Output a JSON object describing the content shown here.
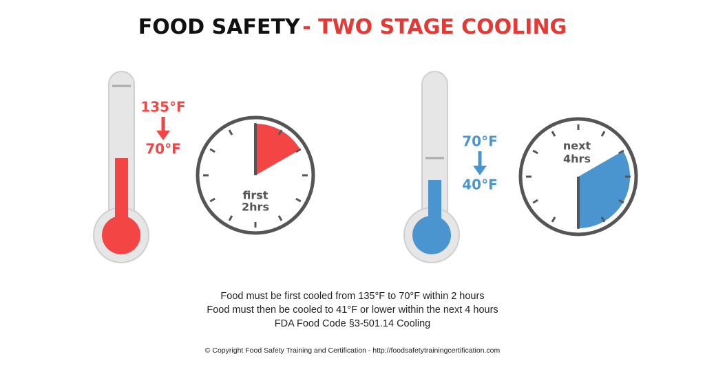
{
  "header": {
    "title_main": "FOOD SAFETY",
    "title_accent": "- TWO STAGE COOLING"
  },
  "stages": [
    {
      "from_temp": "135°F",
      "to_temp": "70°F",
      "clock_label": [
        "first",
        "2hrs"
      ]
    },
    {
      "from_temp": "70°F",
      "to_temp": "40°F",
      "clock_label": [
        "next",
        "4hrs"
      ]
    }
  ],
  "notes": [
    "Food must be first cooled from 135°F to 70°F within 2 hours",
    "Food must then be cooled to 41°F or lower within the next 4 hours",
    "FDA Food Code §3-501.14 Cooling"
  ],
  "footer": "© Copyright Food Safety Training and Certification - http://foodsafetytrainingcertification.com"
}
